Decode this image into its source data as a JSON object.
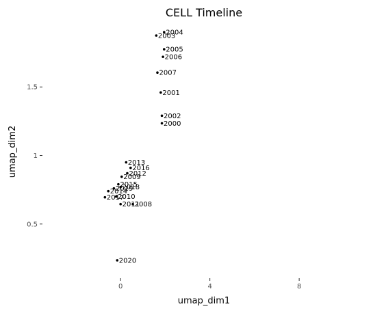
{
  "chart_data": {
    "type": "scatter",
    "title": "CELL Timeline",
    "xlabel": "umap_dim1",
    "ylabel": "umap_dim2",
    "xlim": [
      -3.5,
      11
    ],
    "ylim": [
      0.125,
      1.95
    ],
    "x_ticks": [
      {
        "value": 0,
        "label": "0"
      },
      {
        "value": 4,
        "label": "4"
      },
      {
        "value": 8,
        "label": "8"
      }
    ],
    "y_ticks": [
      {
        "value": 0.5,
        "label": "0.5"
      },
      {
        "value": 1,
        "label": "1"
      },
      {
        "value": 1.5,
        "label": "1.5"
      }
    ],
    "grid": false,
    "points": [
      {
        "x": 1.95,
        "y": 1.9,
        "label": "2004"
      },
      {
        "x": 1.6,
        "y": 1.875,
        "label": "2003"
      },
      {
        "x": 1.95,
        "y": 1.775,
        "label": "2005"
      },
      {
        "x": 1.9,
        "y": 1.72,
        "label": "2006"
      },
      {
        "x": 1.65,
        "y": 1.605,
        "label": "2007"
      },
      {
        "x": 1.8,
        "y": 1.46,
        "label": "2001"
      },
      {
        "x": 1.85,
        "y": 1.29,
        "label": "2002"
      },
      {
        "x": 1.85,
        "y": 1.235,
        "label": "2000"
      },
      {
        "x": 0.25,
        "y": 0.95,
        "label": "2013"
      },
      {
        "x": 0.45,
        "y": 0.91,
        "label": "2016"
      },
      {
        "x": 0.3,
        "y": 0.87,
        "label": "2012"
      },
      {
        "x": 0.05,
        "y": 0.845,
        "label": "2009"
      },
      {
        "x": -0.1,
        "y": 0.79,
        "label": "2015"
      },
      {
        "x": 0.0,
        "y": 0.77,
        "label": "2018"
      },
      {
        "x": -0.3,
        "y": 0.76,
        "label": "2019"
      },
      {
        "x": -0.55,
        "y": 0.74,
        "label": "2014"
      },
      {
        "x": -0.2,
        "y": 0.7,
        "label": "2010"
      },
      {
        "x": -0.7,
        "y": 0.695,
        "label": "2017"
      },
      {
        "x": 0.0,
        "y": 0.645,
        "label": "2011"
      },
      {
        "x": 0.55,
        "y": 0.645,
        "label": "2008"
      },
      {
        "x": -0.15,
        "y": 0.235,
        "label": "2020"
      }
    ]
  }
}
